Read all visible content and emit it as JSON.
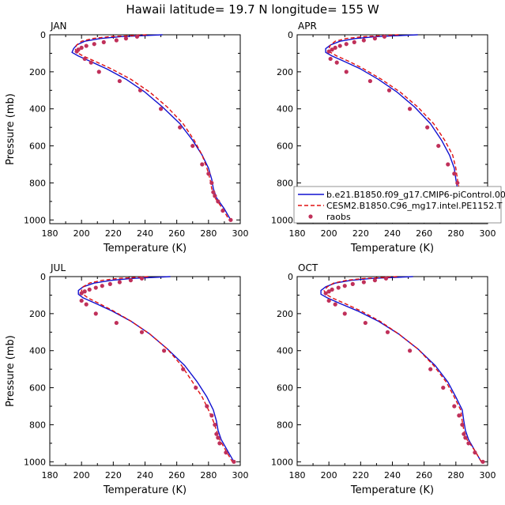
{
  "page": {
    "title": "Hawaii  latitude= 19.7 N longitude= 155 W"
  },
  "colors": {
    "model1": "#1010d0",
    "model2": "#e01010",
    "obs": "#c0305a",
    "axis": "#000000"
  },
  "legend": {
    "placement": "right of APR panel, lower",
    "entries": [
      {
        "key": "model1",
        "label": "b.e21.B1850.f09_g17.CMIP6-piControl.00"
      },
      {
        "key": "model2",
        "label": "CESM2.B1850.C96_mg17.intel.PE1152.T"
      },
      {
        "key": "obs",
        "label": "raobs"
      }
    ]
  },
  "chart_data": [
    {
      "type": "line",
      "panel": "JAN",
      "xlabel": "Temperature (K)",
      "ylabel": "Pressure (mb)",
      "xlim": [
        180,
        300
      ],
      "ylim": [
        1020,
        0
      ],
      "y_inverted": true,
      "xticks": [
        180,
        200,
        220,
        240,
        260,
        280,
        300
      ],
      "yticks": [
        0,
        200,
        400,
        600,
        800,
        1000
      ],
      "series": [
        {
          "name": "b.e21.B1850.f09_g17.CMIP6-piControl.00",
          "style": "solid",
          "color": "model1",
          "x": [
            251,
            238,
            225,
            212,
            202,
            197,
            195,
            194,
            198,
            206,
            216,
            228,
            240,
            251,
            262,
            270,
            276,
            280,
            282,
            283,
            285,
            290,
            294
          ],
          "y": [
            0,
            5,
            10,
            20,
            35,
            55,
            75,
            95,
            115,
            145,
            185,
            240,
            310,
            390,
            480,
            570,
            650,
            720,
            780,
            830,
            880,
            940,
            1000
          ]
        },
        {
          "name": "CESM2.B1850.C96_mg17.intel.PE1152.T",
          "style": "dashed",
          "color": "model2",
          "x": [
            241,
            230,
            218,
            207,
            200,
            197,
            196,
            197,
            201,
            209,
            219,
            231,
            243,
            254,
            264,
            271,
            276,
            279,
            281,
            282,
            284,
            289,
            293
          ],
          "y": [
            0,
            5,
            10,
            20,
            35,
            55,
            75,
            95,
            115,
            145,
            185,
            240,
            310,
            390,
            480,
            570,
            650,
            720,
            780,
            830,
            880,
            940,
            1000
          ]
        },
        {
          "name": "raobs",
          "style": "points",
          "color": "obs",
          "x": [
            235,
            228,
            222,
            214,
            208,
            203,
            200,
            198,
            197,
            202,
            206,
            211,
            224,
            237,
            250,
            262,
            270,
            276,
            280,
            282,
            283,
            284,
            286,
            289,
            294
          ],
          "y": [
            10,
            20,
            30,
            40,
            50,
            60,
            70,
            80,
            90,
            130,
            150,
            200,
            250,
            300,
            400,
            500,
            600,
            700,
            750,
            800,
            850,
            870,
            900,
            950,
            1000
          ]
        }
      ]
    },
    {
      "type": "line",
      "panel": "APR",
      "xlabel": "Temperature (K)",
      "ylabel": "",
      "xlim": [
        180,
        300
      ],
      "ylim": [
        1020,
        0
      ],
      "y_inverted": true,
      "xticks": [
        180,
        200,
        220,
        240,
        260,
        280,
        300
      ],
      "yticks": [
        0,
        200,
        400,
        600,
        800,
        1000
      ],
      "series": [
        {
          "name": "b.e21.B1850.f09_g17.CMIP6-piControl.00",
          "style": "solid",
          "color": "model1",
          "x": [
            256,
            243,
            230,
            217,
            207,
            201,
            198,
            198,
            202,
            210,
            220,
            231,
            243,
            254,
            264,
            271,
            276,
            279,
            280,
            281,
            283,
            288,
            294
          ],
          "y": [
            0,
            5,
            10,
            20,
            35,
            55,
            75,
            95,
            115,
            145,
            185,
            240,
            310,
            390,
            480,
            570,
            650,
            720,
            780,
            830,
            880,
            940,
            1000
          ]
        },
        {
          "name": "CESM2.B1850.C96_mg17.intel.PE1152.T",
          "style": "dashed",
          "color": "model2",
          "x": [
            244,
            233,
            222,
            211,
            204,
            201,
            200,
            201,
            205,
            213,
            222,
            233,
            245,
            256,
            266,
            273,
            278,
            280,
            281,
            282,
            284,
            289,
            294
          ],
          "y": [
            0,
            5,
            10,
            20,
            35,
            55,
            75,
            95,
            115,
            145,
            185,
            240,
            310,
            390,
            480,
            570,
            650,
            720,
            780,
            830,
            880,
            940,
            1000
          ]
        },
        {
          "name": "raobs",
          "style": "points",
          "color": "obs",
          "x": [
            235,
            229,
            222,
            216,
            211,
            207,
            204,
            202,
            200,
            201,
            205,
            211,
            226,
            238,
            251,
            262,
            269,
            275,
            279,
            281,
            283,
            284,
            285,
            289,
            294
          ],
          "y": [
            10,
            20,
            30,
            40,
            50,
            60,
            70,
            80,
            90,
            130,
            150,
            200,
            250,
            300,
            400,
            500,
            600,
            700,
            750,
            800,
            850,
            870,
            900,
            950,
            1000
          ]
        }
      ]
    },
    {
      "type": "line",
      "panel": "JUL",
      "xlabel": "Temperature (K)",
      "ylabel": "Pressure (mb)",
      "xlim": [
        180,
        300
      ],
      "ylim": [
        1020,
        0
      ],
      "y_inverted": true,
      "xticks": [
        180,
        200,
        220,
        240,
        260,
        280,
        300
      ],
      "yticks": [
        0,
        200,
        400,
        600,
        800,
        1000
      ],
      "series": [
        {
          "name": "b.e21.B1850.f09_g17.CMIP6-piControl.00",
          "style": "solid",
          "color": "model1",
          "x": [
            256,
            244,
            232,
            219,
            208,
            201,
            198,
            198,
            201,
            209,
            219,
            231,
            243,
            254,
            265,
            273,
            279,
            283,
            285,
            286,
            288,
            292,
            296
          ],
          "y": [
            0,
            5,
            10,
            20,
            35,
            55,
            75,
            95,
            115,
            145,
            185,
            240,
            310,
            390,
            480,
            570,
            650,
            720,
            780,
            830,
            880,
            940,
            1000
          ]
        },
        {
          "name": "CESM2.B1850.C96_mg17.intel.PE1152.T",
          "style": "dashed",
          "color": "model2",
          "x": [
            242,
            233,
            223,
            213,
            205,
            201,
            200,
            201,
            204,
            211,
            220,
            231,
            243,
            254,
            263,
            270,
            276,
            280,
            283,
            285,
            287,
            291,
            295
          ],
          "y": [
            0,
            5,
            10,
            20,
            35,
            55,
            75,
            95,
            115,
            145,
            185,
            240,
            310,
            390,
            480,
            570,
            650,
            720,
            780,
            830,
            880,
            940,
            1000
          ]
        },
        {
          "name": "raobs",
          "style": "points",
          "color": "obs",
          "x": [
            238,
            231,
            224,
            218,
            213,
            209,
            205,
            202,
            200,
            200,
            203,
            209,
            222,
            238,
            252,
            264,
            272,
            279,
            282,
            284,
            285,
            286,
            287,
            291,
            296
          ],
          "y": [
            10,
            20,
            30,
            40,
            50,
            60,
            70,
            80,
            90,
            130,
            150,
            200,
            250,
            300,
            400,
            500,
            600,
            700,
            750,
            800,
            850,
            870,
            900,
            950,
            1000
          ]
        }
      ]
    },
    {
      "type": "line",
      "panel": "OCT",
      "xlabel": "Temperature (K)",
      "ylabel": "",
      "xlim": [
        180,
        300
      ],
      "ylim": [
        1020,
        0
      ],
      "y_inverted": true,
      "xticks": [
        180,
        200,
        220,
        240,
        260,
        280,
        300
      ],
      "yticks": [
        0,
        200,
        400,
        600,
        800,
        1000
      ],
      "series": [
        {
          "name": "b.e21.B1850.f09_g17.CMIP6-piControl.00",
          "style": "solid",
          "color": "model1",
          "x": [
            253,
            240,
            227,
            214,
            204,
            198,
            195,
            195,
            199,
            207,
            218,
            231,
            244,
            256,
            267,
            275,
            280,
            284,
            285,
            286,
            288,
            292,
            296
          ],
          "y": [
            0,
            5,
            10,
            20,
            35,
            55,
            75,
            95,
            115,
            145,
            185,
            240,
            310,
            390,
            480,
            570,
            650,
            720,
            780,
            830,
            880,
            940,
            1000
          ]
        },
        {
          "name": "CESM2.B1850.C96_mg17.intel.PE1152.T",
          "style": "dashed",
          "color": "model2",
          "x": [
            243,
            233,
            222,
            211,
            203,
            199,
            197,
            198,
            202,
            210,
            220,
            232,
            244,
            256,
            266,
            274,
            279,
            283,
            284,
            285,
            287,
            292,
            296
          ],
          "y": [
            0,
            5,
            10,
            20,
            35,
            55,
            75,
            95,
            115,
            145,
            185,
            240,
            310,
            390,
            480,
            570,
            650,
            720,
            780,
            830,
            880,
            940,
            1000
          ]
        },
        {
          "name": "raobs",
          "style": "points",
          "color": "obs",
          "x": [
            236,
            229,
            222,
            215,
            210,
            206,
            202,
            200,
            198,
            200,
            204,
            210,
            223,
            237,
            251,
            264,
            272,
            279,
            282,
            284,
            285,
            286,
            288,
            292,
            297
          ],
          "y": [
            10,
            20,
            30,
            40,
            50,
            60,
            70,
            80,
            90,
            130,
            150,
            200,
            250,
            300,
            400,
            500,
            600,
            700,
            750,
            800,
            850,
            870,
            900,
            950,
            1000
          ]
        }
      ]
    }
  ]
}
